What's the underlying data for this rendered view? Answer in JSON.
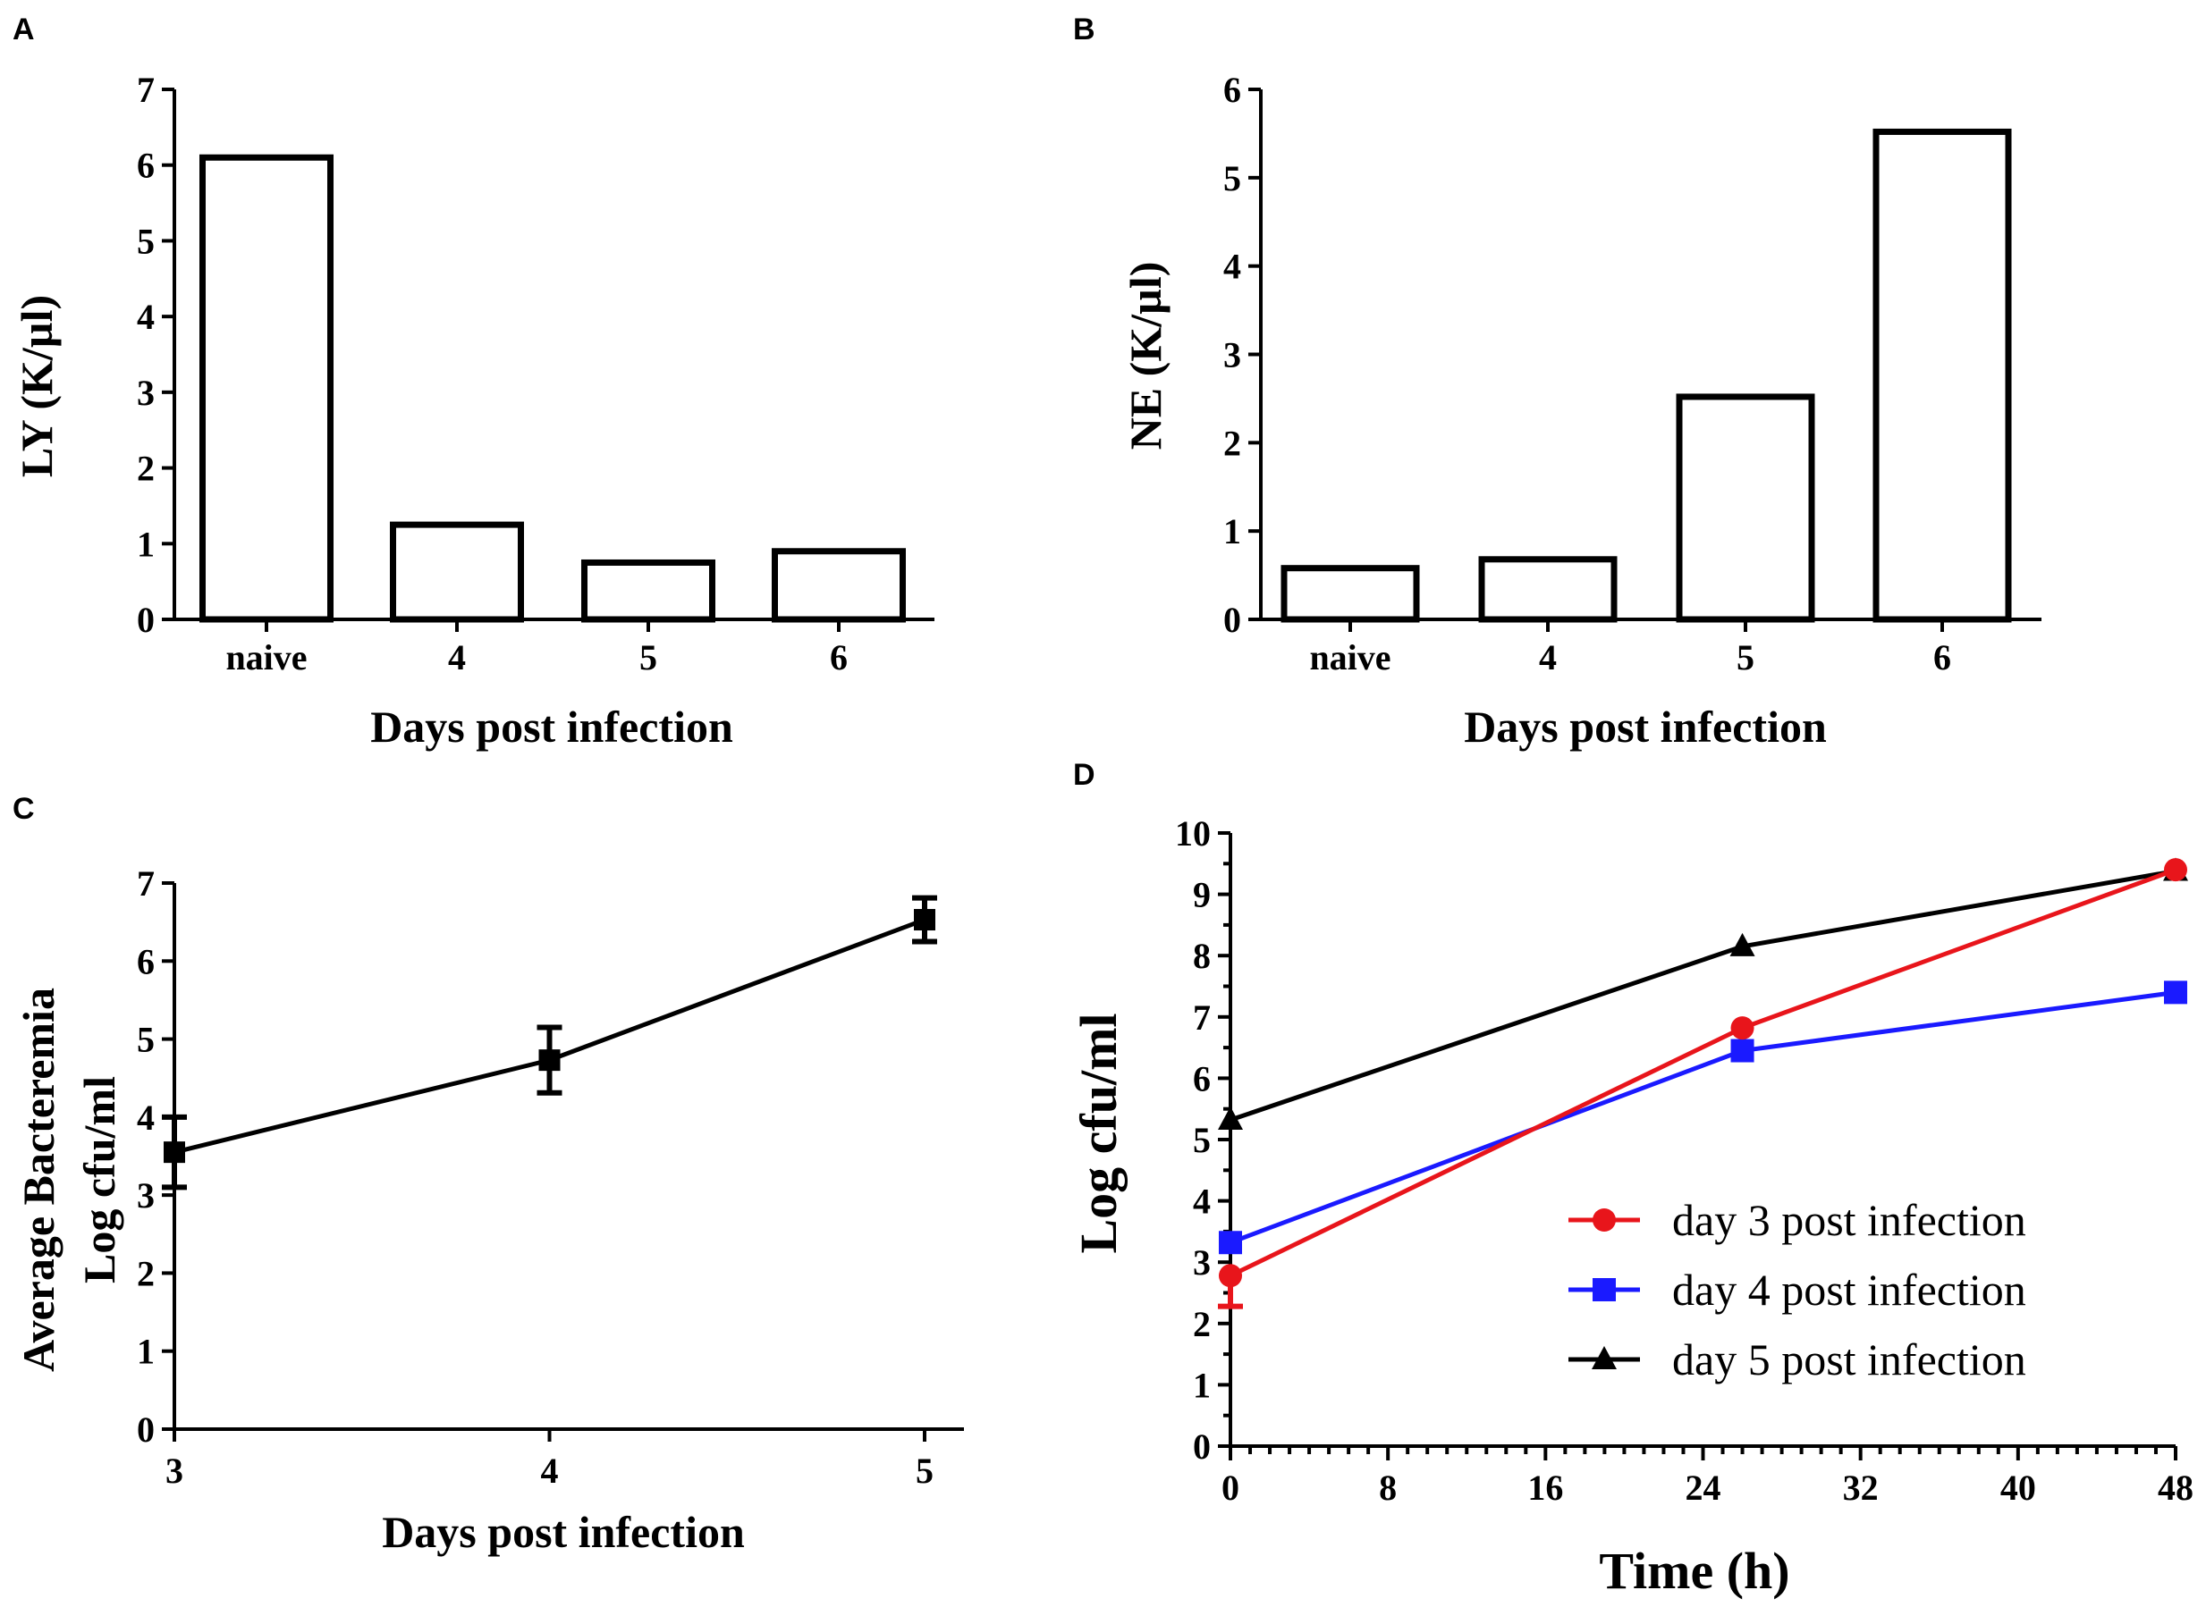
{
  "chart_data": [
    {
      "panel": "A",
      "type": "bar",
      "categories": [
        "naive",
        "4",
        "5",
        "6"
      ],
      "values": [
        6.1,
        1.25,
        0.75,
        0.9
      ],
      "xlabel": "Days post infection",
      "ylabel": "LY (K/µl)",
      "ylim": [
        0,
        7
      ],
      "yticks": [
        "0",
        "1",
        "2",
        "3",
        "4",
        "5",
        "6",
        "7"
      ]
    },
    {
      "panel": "B",
      "type": "bar",
      "categories": [
        "naive",
        "4",
        "5",
        "6"
      ],
      "values": [
        0.58,
        0.68,
        2.52,
        5.52
      ],
      "xlabel": "Days post infection",
      "ylabel": "NE (K/µl)",
      "ylim": [
        0,
        6
      ],
      "yticks": [
        "0",
        "1",
        "2",
        "3",
        "4",
        "5",
        "6"
      ]
    },
    {
      "panel": "C",
      "type": "line",
      "x": [
        3,
        4,
        5
      ],
      "y": [
        3.55,
        4.73,
        6.53
      ],
      "error": [
        0.45,
        0.42,
        0.28
      ],
      "xticks": [
        "3",
        "4",
        "5"
      ],
      "xlim": [
        3,
        5.1
      ],
      "ylim": [
        0,
        7
      ],
      "yticks": [
        "0",
        "1",
        "2",
        "3",
        "4",
        "5",
        "6",
        "7"
      ],
      "xlabel": "Days post infection",
      "ylabel_lines": [
        "Average Bacteremia",
        "Log cfu/ml"
      ]
    },
    {
      "panel": "D",
      "type": "line",
      "xlim": [
        0,
        48
      ],
      "ylim": [
        0,
        10
      ],
      "xticks": [
        "0",
        "8",
        "16",
        "24",
        "32",
        "40",
        "48"
      ],
      "yticks": [
        "0",
        "1",
        "2",
        "3",
        "4",
        "5",
        "6",
        "7",
        "8",
        "9",
        "10"
      ],
      "xlabel": "Time (h)",
      "ylabel": "Log cfu/ml",
      "legend_position": "center-right",
      "series": [
        {
          "name": "day 3 post infection",
          "color": "#e8151b",
          "marker": "circle",
          "x": [
            0,
            26,
            48
          ],
          "y": [
            2.78,
            6.82,
            9.4
          ],
          "error": [
            0.5,
            0,
            0
          ]
        },
        {
          "name": "day 4 post infection",
          "color": "#1a1aff",
          "marker": "square",
          "x": [
            0,
            26,
            48
          ],
          "y": [
            3.32,
            6.45,
            7.4
          ],
          "error": [
            0,
            0,
            0
          ]
        },
        {
          "name": "day 5 post infection",
          "color": "#000000",
          "marker": "triangle",
          "x": [
            0,
            26,
            48
          ],
          "y": [
            5.32,
            8.15,
            9.38
          ],
          "error": [
            0,
            0,
            0
          ]
        }
      ]
    }
  ]
}
